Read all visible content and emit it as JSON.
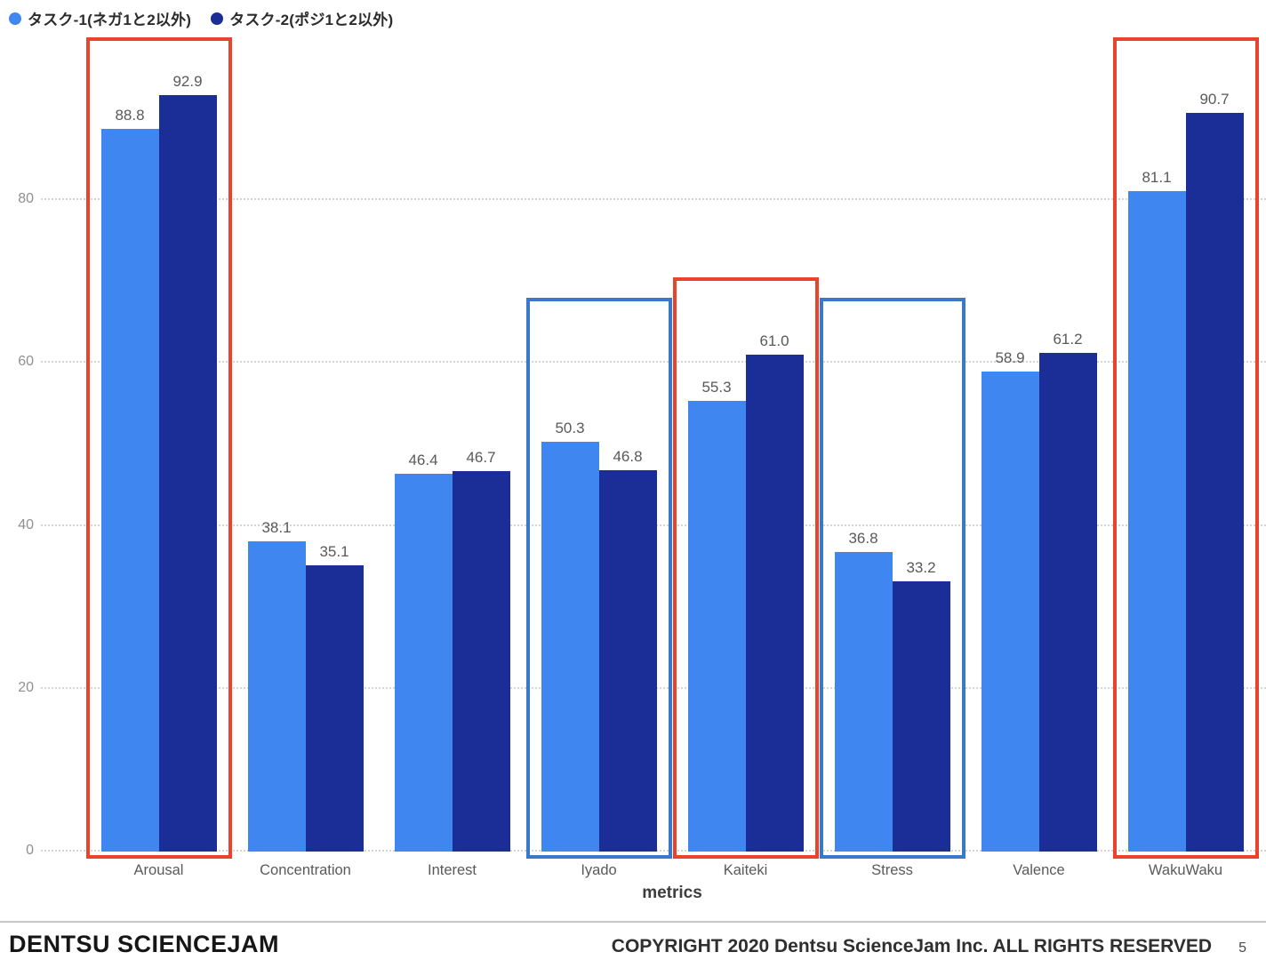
{
  "legend": [
    {
      "label": "タスク-1(ネガ1と2以外)",
      "color": "#3F86F0"
    },
    {
      "label": "タスク-2(ポジ1と2以外)",
      "color": "#1B2D96"
    }
  ],
  "chart_data": {
    "type": "bar",
    "title": "",
    "xlabel": "metrics",
    "ylabel": "",
    "ylim": [
      0,
      100
    ],
    "yticks": [
      0,
      20,
      40,
      60,
      80
    ],
    "grid": "horizontal-dotted",
    "legend_position": "top-left",
    "categories": [
      "Arousal",
      "Concentration",
      "Interest",
      "Iyado",
      "Kaiteki",
      "Stress",
      "Valence",
      "WakuWaku"
    ],
    "series": [
      {
        "name": "タスク-1(ネガ1と2以外)",
        "color": "#3F86F0",
        "values": [
          88.8,
          38.1,
          46.4,
          50.3,
          55.3,
          36.8,
          58.9,
          81.1
        ],
        "labels": [
          "88.8",
          "38.1",
          "46.4",
          "50.3",
          "55.3",
          "36.8",
          "58.9",
          "81.1"
        ]
      },
      {
        "name": "タスク-2(ポジ1と2以外)",
        "color": "#1B2D96",
        "values": [
          92.9,
          35.1,
          46.7,
          46.8,
          61.0,
          33.2,
          61.2,
          90.7
        ],
        "labels": [
          "92.9",
          "35.1",
          "46.7",
          "46.8",
          "61.0",
          "33.2",
          "61.2",
          "90.7"
        ]
      }
    ],
    "highlights": [
      {
        "category": "Arousal",
        "color": "#E8432C",
        "top": 100
      },
      {
        "category": "Iyado",
        "color": "#3C78C8",
        "top": 68
      },
      {
        "category": "Kaiteki",
        "color": "#E8432C",
        "top": 70.5
      },
      {
        "category": "Stress",
        "color": "#3C78C8",
        "top": 68
      },
      {
        "category": "WakuWaku",
        "color": "#E8432C",
        "top": 100
      }
    ]
  },
  "footer": {
    "brand": "DENTSU SCIENCEJAM",
    "copyright": "COPYRIGHT 2020 Dentsu ScienceJam Inc. ALL RIGHTS RESERVED",
    "page_number": "5"
  }
}
